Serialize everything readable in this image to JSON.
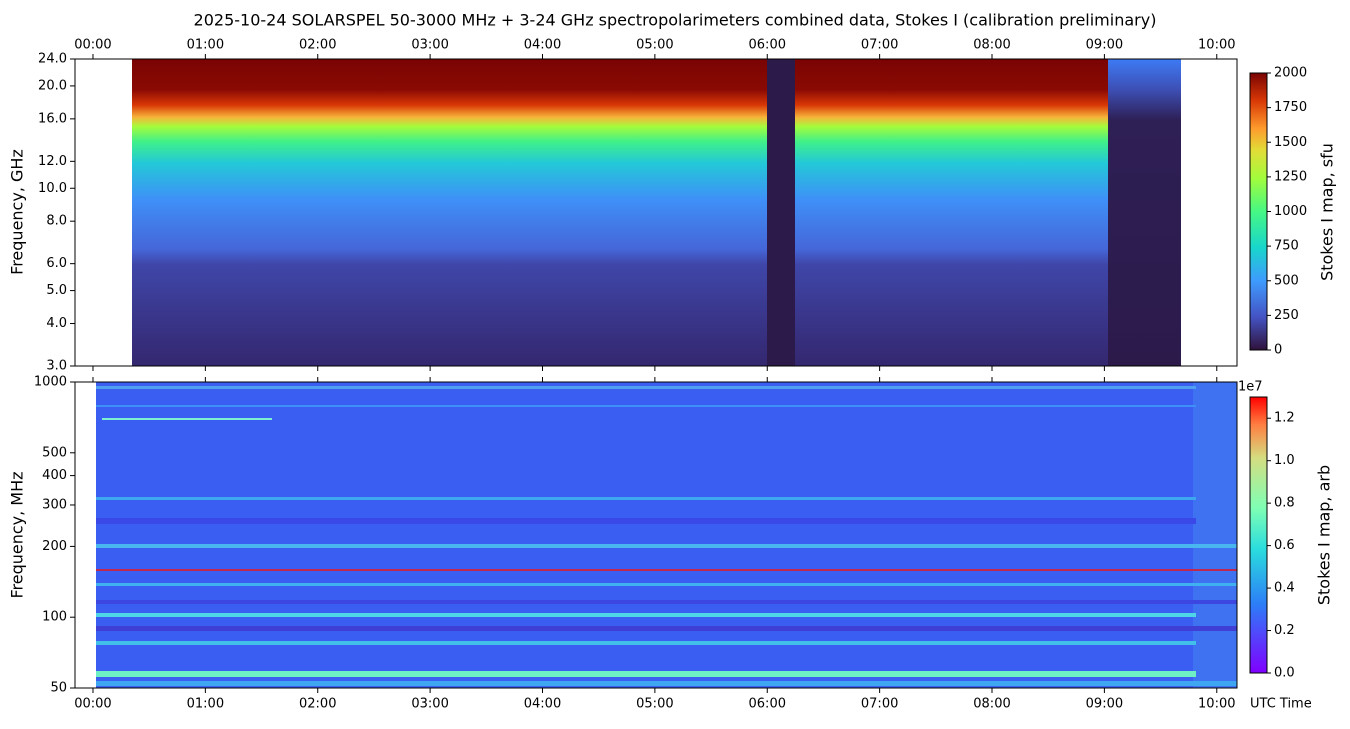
{
  "chart_data": [
    {
      "type": "heatmap",
      "title": "2025-10-24  SOLARSPEL  50-3000 MHz  +  3-24 GHz  spectropolarimeters combined data,  Stokes I  (calibration preliminary)",
      "ylabel": "Frequency, GHz",
      "log_y": true,
      "xtick_side": "top",
      "xlim": [
        -0.16,
        10.18
      ],
      "xticks": [
        {
          "value": 0,
          "label": "00:00"
        },
        {
          "value": 1,
          "label": "01:00"
        },
        {
          "value": 2,
          "label": "02:00"
        },
        {
          "value": 3,
          "label": "03:00"
        },
        {
          "value": 4,
          "label": "04:00"
        },
        {
          "value": 5,
          "label": "05:00"
        },
        {
          "value": 6,
          "label": "06:00"
        },
        {
          "value": 7,
          "label": "07:00"
        },
        {
          "value": 8,
          "label": "08:00"
        },
        {
          "value": 9,
          "label": "09:00"
        },
        {
          "value": 10,
          "label": "10:00"
        }
      ],
      "ylim": [
        3,
        24
      ],
      "yticks": [
        {
          "value": 3,
          "label": "3.0"
        },
        {
          "value": 4,
          "label": "4.0"
        },
        {
          "value": 5,
          "label": "5.0"
        },
        {
          "value": 6,
          "label": "6.0"
        },
        {
          "value": 8,
          "label": "8.0"
        },
        {
          "value": 10,
          "label": "10.0"
        },
        {
          "value": 12,
          "label": "12.0"
        },
        {
          "value": 16,
          "label": "16.0"
        },
        {
          "value": 20,
          "label": "20.0"
        },
        {
          "value": 24,
          "label": "24.0"
        }
      ],
      "colorbar": {
        "label": "Stokes I map, sfu",
        "lim": [
          0,
          2000
        ],
        "ticks": [
          0,
          250,
          500,
          750,
          1000,
          1250,
          1500,
          1750,
          2000
        ],
        "cmap": "turbo"
      }
    },
    {
      "type": "heatmap",
      "ylabel": "Frequency, MHz",
      "xlabel": "UTC Time",
      "log_y": true,
      "xtick_side": "bottom",
      "xlim": [
        -0.16,
        10.18
      ],
      "xticks": [
        {
          "value": 0,
          "label": "00:00"
        },
        {
          "value": 1,
          "label": "01:00"
        },
        {
          "value": 2,
          "label": "02:00"
        },
        {
          "value": 3,
          "label": "03:00"
        },
        {
          "value": 4,
          "label": "04:00"
        },
        {
          "value": 5,
          "label": "05:00"
        },
        {
          "value": 6,
          "label": "06:00"
        },
        {
          "value": 7,
          "label": "07:00"
        },
        {
          "value": 8,
          "label": "08:00"
        },
        {
          "value": 9,
          "label": "09:00"
        },
        {
          "value": 10,
          "label": "10:00"
        }
      ],
      "ylim": [
        50,
        1000
      ],
      "yticks": [
        50,
        100,
        200,
        300,
        400,
        500,
        1000
      ],
      "colorbar": {
        "label": "Stokes I map, arb",
        "lim": [
          0,
          13000000
        ],
        "offset_label": "1e7",
        "cmap": "rainbow",
        "ticks": [
          {
            "value": 0,
            "label": "0.0"
          },
          {
            "value": 2000000,
            "label": "0.2"
          },
          {
            "value": 4000000,
            "label": "0.4"
          },
          {
            "value": 6000000,
            "label": "0.6"
          },
          {
            "value": 8000000,
            "label": "0.8"
          },
          {
            "value": 10000000,
            "label": "1.0"
          },
          {
            "value": 12000000,
            "label": "1.2"
          }
        ]
      }
    }
  ]
}
